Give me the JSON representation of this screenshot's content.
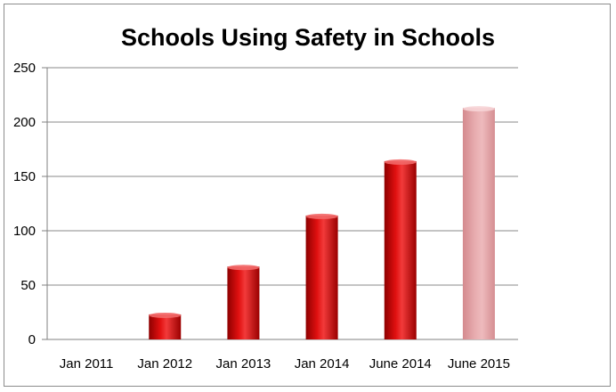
{
  "chart_data": {
    "type": "bar",
    "title": "Schools Using Safety in Schools",
    "xlabel": "",
    "ylabel": "",
    "categories": [
      "Jan 2011",
      "Jan 2012",
      "Jan 2013",
      "Jan 2014",
      "June 2014",
      "June 2015"
    ],
    "values": [
      0,
      23,
      67,
      114,
      164,
      213
    ],
    "ylim": [
      0,
      250
    ],
    "yticks": [
      "0",
      "50",
      "100",
      "150",
      "200",
      "250"
    ],
    "grid": true,
    "legend": "none",
    "colors": {
      "bar": "#cc0000",
      "bar_projected": "#e3a3a6",
      "grid": "#8a8a8a",
      "axis": "#808080"
    },
    "projected_index": 5
  }
}
